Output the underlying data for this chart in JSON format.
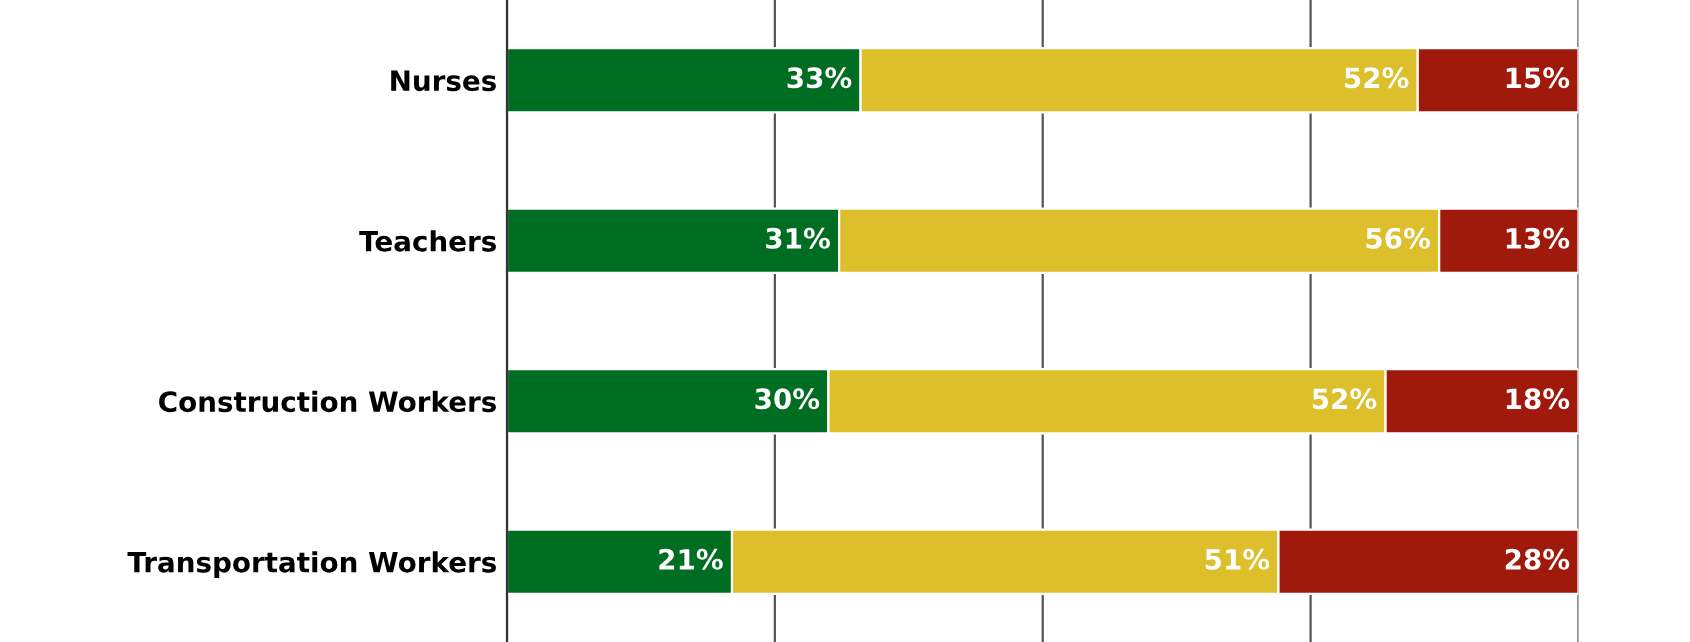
{
  "chart_data": {
    "type": "bar",
    "orientation": "horizontal",
    "stacked": true,
    "categories": [
      "Nurses",
      "Teachers",
      "Construction Workers",
      "Transportation Workers"
    ],
    "series": [
      {
        "color": "#006e22",
        "values": [
          33,
          31,
          30,
          21
        ],
        "value_labels": [
          "33%",
          "31%",
          "30%",
          "21%"
        ]
      },
      {
        "color": "#dcbf2a",
        "values": [
          52,
          56,
          52,
          51
        ],
        "value_labels": [
          "52%",
          "56%",
          "52%",
          "51%"
        ]
      },
      {
        "color": "#a01a0c",
        "values": [
          15,
          13,
          18,
          28
        ],
        "value_labels": [
          "15%",
          "13%",
          "18%",
          "28%"
        ]
      }
    ],
    "xlim": [
      0,
      100
    ],
    "xticks": [
      {
        "value": 0,
        "label": null
      },
      {
        "value": 25,
        "label": null
      },
      {
        "value": 50,
        "label": null
      },
      {
        "value": 75,
        "label": null
      },
      {
        "value": 100,
        "label": null
      }
    ],
    "grid": "x",
    "legend": false
  }
}
